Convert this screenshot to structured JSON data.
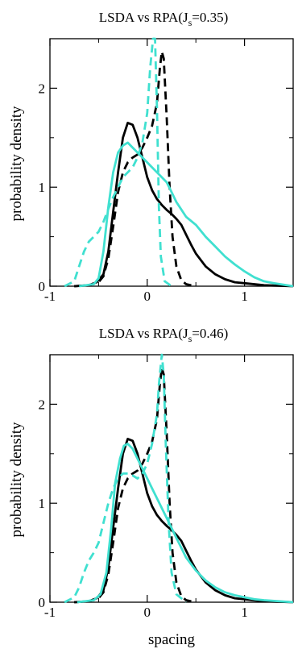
{
  "colors": {
    "black": "#000000",
    "cyan": "#40e0d0"
  },
  "chart_data": [
    {
      "type": "line",
      "title": "LSDA vs RPA(J",
      "title_sub": "s",
      "title_suffix": "=0.35)",
      "xlabel": "",
      "ylabel": "probability density",
      "xlim": [
        -1,
        1.5
      ],
      "ylim": [
        0,
        2.5
      ],
      "xticks": [
        "-1",
        "0",
        "1"
      ],
      "xtick_values": [
        -1,
        0,
        1
      ],
      "yticks": [
        "0",
        "1",
        "2"
      ],
      "ytick_values": [
        0,
        1,
        2
      ],
      "series": [
        {
          "style": "black-solid",
          "x": [
            -0.75,
            -0.6,
            -0.52,
            -0.45,
            -0.4,
            -0.35,
            -0.3,
            -0.25,
            -0.2,
            -0.15,
            -0.1,
            -0.05,
            0.0,
            0.05,
            0.1,
            0.15,
            0.2,
            0.25,
            0.3,
            0.35,
            0.4,
            0.45,
            0.5,
            0.6,
            0.7,
            0.8,
            0.9,
            1.0,
            1.2,
            1.5
          ],
          "y": [
            0,
            0.01,
            0.04,
            0.12,
            0.35,
            0.75,
            1.15,
            1.5,
            1.65,
            1.63,
            1.5,
            1.3,
            1.1,
            0.97,
            0.88,
            0.82,
            0.77,
            0.73,
            0.68,
            0.62,
            0.52,
            0.42,
            0.33,
            0.2,
            0.12,
            0.07,
            0.04,
            0.03,
            0.01,
            0
          ]
        },
        {
          "style": "black-dashed",
          "x": [
            -0.75,
            -0.6,
            -0.5,
            -0.45,
            -0.4,
            -0.35,
            -0.3,
            -0.25,
            -0.2,
            -0.15,
            -0.1,
            -0.05,
            0.0,
            0.05,
            0.1,
            0.13,
            0.15,
            0.17,
            0.2,
            0.23,
            0.26,
            0.3,
            0.35,
            0.4,
            0.5
          ],
          "y": [
            0,
            0.01,
            0.04,
            0.1,
            0.28,
            0.6,
            0.95,
            1.15,
            1.25,
            1.3,
            1.33,
            1.4,
            1.5,
            1.62,
            1.85,
            2.2,
            2.37,
            2.3,
            1.7,
            1.0,
            0.5,
            0.2,
            0.06,
            0.02,
            0
          ]
        },
        {
          "style": "cyan-solid",
          "x": [
            -0.7,
            -0.55,
            -0.5,
            -0.45,
            -0.4,
            -0.35,
            -0.3,
            -0.25,
            -0.2,
            -0.15,
            -0.1,
            -0.05,
            0.0,
            0.05,
            0.1,
            0.15,
            0.2,
            0.25,
            0.3,
            0.4,
            0.5,
            0.6,
            0.7,
            0.8,
            0.9,
            1.0,
            1.1,
            1.2,
            1.3,
            1.5
          ],
          "y": [
            0,
            0.02,
            0.08,
            0.35,
            0.8,
            1.15,
            1.35,
            1.42,
            1.45,
            1.4,
            1.35,
            1.3,
            1.25,
            1.2,
            1.15,
            1.1,
            1.05,
            0.95,
            0.85,
            0.7,
            0.62,
            0.5,
            0.4,
            0.3,
            0.22,
            0.15,
            0.09,
            0.05,
            0.03,
            0
          ]
        },
        {
          "style": "cyan-dashed",
          "x": [
            -0.85,
            -0.75,
            -0.7,
            -0.65,
            -0.6,
            -0.55,
            -0.5,
            -0.45,
            -0.4,
            -0.35,
            -0.3,
            -0.25,
            -0.2,
            -0.15,
            -0.1,
            -0.05,
            0.0,
            0.03,
            0.06,
            0.08,
            0.1,
            0.12,
            0.14,
            0.18,
            0.25
          ],
          "y": [
            0,
            0.05,
            0.2,
            0.35,
            0.45,
            0.5,
            0.55,
            0.65,
            0.78,
            0.9,
            1.0,
            1.1,
            1.15,
            1.2,
            1.3,
            1.45,
            1.75,
            2.2,
            2.5,
            2.5,
            1.8,
            0.8,
            0.3,
            0.05,
            0
          ]
        }
      ]
    },
    {
      "type": "line",
      "title": "LSDA vs RPA(J",
      "title_sub": "s",
      "title_suffix": "=0.46)",
      "xlabel": "spacing",
      "ylabel": "probability density",
      "xlim": [
        -1,
        1.5
      ],
      "ylim": [
        0,
        2.5
      ],
      "xticks": [
        "-1",
        "0",
        "1"
      ],
      "xtick_values": [
        -1,
        0,
        1
      ],
      "yticks": [
        "0",
        "1",
        "2"
      ],
      "ytick_values": [
        0,
        1,
        2
      ],
      "series": [
        {
          "style": "black-solid",
          "x": [
            -0.75,
            -0.6,
            -0.52,
            -0.45,
            -0.4,
            -0.35,
            -0.3,
            -0.25,
            -0.2,
            -0.15,
            -0.1,
            -0.05,
            0.0,
            0.05,
            0.1,
            0.15,
            0.2,
            0.25,
            0.3,
            0.35,
            0.4,
            0.45,
            0.5,
            0.6,
            0.7,
            0.8,
            0.9,
            1.0,
            1.2,
            1.5
          ],
          "y": [
            0,
            0.01,
            0.04,
            0.12,
            0.35,
            0.75,
            1.15,
            1.5,
            1.65,
            1.63,
            1.5,
            1.3,
            1.1,
            0.97,
            0.88,
            0.82,
            0.77,
            0.73,
            0.68,
            0.62,
            0.52,
            0.42,
            0.33,
            0.2,
            0.12,
            0.07,
            0.04,
            0.03,
            0.01,
            0
          ]
        },
        {
          "style": "black-dashed",
          "x": [
            -0.75,
            -0.6,
            -0.5,
            -0.45,
            -0.4,
            -0.35,
            -0.3,
            -0.25,
            -0.2,
            -0.15,
            -0.1,
            -0.05,
            0.0,
            0.05,
            0.1,
            0.13,
            0.15,
            0.17,
            0.2,
            0.23,
            0.26,
            0.3,
            0.35,
            0.4,
            0.5
          ],
          "y": [
            0,
            0.01,
            0.04,
            0.1,
            0.28,
            0.6,
            0.95,
            1.15,
            1.25,
            1.3,
            1.33,
            1.4,
            1.5,
            1.62,
            1.85,
            2.2,
            2.37,
            2.3,
            1.7,
            1.0,
            0.5,
            0.2,
            0.06,
            0.02,
            0
          ]
        },
        {
          "style": "cyan-solid",
          "x": [
            -0.72,
            -0.55,
            -0.48,
            -0.42,
            -0.37,
            -0.33,
            -0.28,
            -0.24,
            -0.2,
            -0.15,
            -0.1,
            -0.05,
            0.0,
            0.05,
            0.1,
            0.15,
            0.2,
            0.25,
            0.3,
            0.35,
            0.4,
            0.5,
            0.6,
            0.7,
            0.8,
            0.9,
            1.0,
            1.1,
            1.2,
            1.5
          ],
          "y": [
            0,
            0.02,
            0.08,
            0.3,
            0.75,
            1.2,
            1.45,
            1.58,
            1.6,
            1.55,
            1.45,
            1.35,
            1.25,
            1.15,
            1.05,
            0.95,
            0.85,
            0.75,
            0.65,
            0.55,
            0.45,
            0.32,
            0.22,
            0.15,
            0.1,
            0.07,
            0.05,
            0.03,
            0.02,
            0
          ]
        },
        {
          "style": "cyan-dashed",
          "x": [
            -0.85,
            -0.75,
            -0.7,
            -0.65,
            -0.6,
            -0.55,
            -0.5,
            -0.45,
            -0.4,
            -0.35,
            -0.3,
            -0.25,
            -0.2,
            -0.15,
            -0.1,
            -0.05,
            0.0,
            0.05,
            0.1,
            0.12,
            0.15,
            0.17,
            0.19,
            0.22,
            0.25,
            0.3,
            0.4
          ],
          "y": [
            0,
            0.05,
            0.15,
            0.3,
            0.42,
            0.5,
            0.6,
            0.8,
            1.0,
            1.15,
            1.25,
            1.3,
            1.3,
            1.28,
            1.25,
            1.3,
            1.4,
            1.6,
            1.9,
            2.2,
            2.5,
            2.3,
            1.6,
            0.8,
            0.3,
            0.08,
            0
          ]
        }
      ]
    }
  ]
}
